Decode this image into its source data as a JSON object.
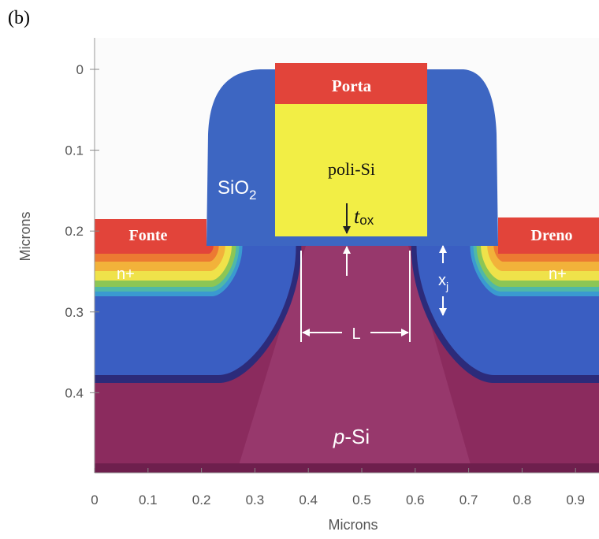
{
  "panel_label": "(b)",
  "x_axis": {
    "label": "Microns",
    "ticks": [
      0,
      0.1,
      0.2,
      0.3,
      0.4,
      0.5,
      0.6,
      0.7,
      0.8,
      0.9
    ]
  },
  "y_axis": {
    "label": "Microns",
    "ticks": [
      0,
      0.1,
      0.2,
      0.3,
      0.4
    ]
  },
  "labels": {
    "gate": "Porta",
    "gate_material": "poli-Si",
    "source": "Fonte",
    "drain": "Dreno",
    "source_doping": "n+",
    "drain_doping": "n+",
    "oxide": {
      "text": "SiO",
      "subscript": "2"
    },
    "oxide_thickness": {
      "text": "t",
      "subscript": "ox"
    },
    "junction_depth": {
      "text": "x",
      "subscript": "j"
    },
    "channel_length": "L",
    "substrate": {
      "italic": "p",
      "text": "-Si"
    }
  }
}
